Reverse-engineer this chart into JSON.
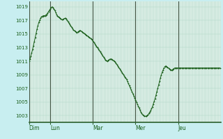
{
  "background_color": "#c8eef0",
  "plot_bg_color": "#dff0e8",
  "grid_color": "#b0d8c8",
  "line_color": "#1a5e1a",
  "marker_color": "#1a5e1a",
  "tick_label_color": "#1a5e1a",
  "axis_label_color": "#1a5e1a",
  "spine_color": "#2a5e2a",
  "day_line_color": "#445544",
  "ylim": [
    1002.0,
    1019.8
  ],
  "yticks": [
    1003,
    1005,
    1007,
    1009,
    1011,
    1013,
    1015,
    1017,
    1019
  ],
  "day_labels": [
    "Dim",
    "Lun",
    "Mar",
    "Mer",
    "Jeu"
  ],
  "day_positions": [
    0,
    24,
    72,
    120,
    168
  ],
  "total_hours": 216,
  "pressure_values": [
    1011.0,
    1011.3,
    1011.7,
    1012.2,
    1012.7,
    1013.3,
    1013.9,
    1014.5,
    1015.1,
    1015.7,
    1016.2,
    1016.7,
    1017.0,
    1017.3,
    1017.5,
    1017.6,
    1017.7,
    1017.7,
    1017.7,
    1017.8,
    1017.9,
    1018.1,
    1018.3,
    1018.5,
    1018.7,
    1018.9,
    1019.0,
    1018.9,
    1018.7,
    1018.5,
    1018.2,
    1017.9,
    1017.7,
    1017.5,
    1017.4,
    1017.3,
    1017.2,
    1017.1,
    1017.1,
    1017.2,
    1017.3,
    1017.3,
    1017.2,
    1017.0,
    1016.8,
    1016.6,
    1016.4,
    1016.2,
    1016.0,
    1015.8,
    1015.6,
    1015.5,
    1015.4,
    1015.3,
    1015.2,
    1015.3,
    1015.4,
    1015.5,
    1015.5,
    1015.4,
    1015.3,
    1015.2,
    1015.1,
    1015.0,
    1014.9,
    1014.8,
    1014.7,
    1014.6,
    1014.5,
    1014.4,
    1014.3,
    1014.2,
    1014.0,
    1013.8,
    1013.6,
    1013.4,
    1013.2,
    1013.0,
    1012.8,
    1012.6,
    1012.4,
    1012.2,
    1012.0,
    1011.8,
    1011.6,
    1011.4,
    1011.2,
    1011.1,
    1011.0,
    1011.1,
    1011.2,
    1011.3,
    1011.3,
    1011.3,
    1011.2,
    1011.1,
    1011.0,
    1010.9,
    1010.7,
    1010.5,
    1010.3,
    1010.1,
    1009.9,
    1009.7,
    1009.5,
    1009.3,
    1009.1,
    1008.9,
    1008.7,
    1008.5,
    1008.3,
    1008.0,
    1007.7,
    1007.4,
    1007.1,
    1006.8,
    1006.5,
    1006.2,
    1005.9,
    1005.6,
    1005.3,
    1005.0,
    1004.7,
    1004.4,
    1004.1,
    1003.8,
    1003.5,
    1003.3,
    1003.1,
    1003.0,
    1002.9,
    1002.9,
    1002.9,
    1003.0,
    1003.1,
    1003.3,
    1003.5,
    1003.7,
    1004.0,
    1004.3,
    1004.7,
    1005.1,
    1005.5,
    1006.0,
    1006.5,
    1007.0,
    1007.5,
    1008.0,
    1008.5,
    1009.0,
    1009.4,
    1009.7,
    1010.0,
    1010.2,
    1010.3,
    1010.2,
    1010.1,
    1010.0,
    1009.9,
    1009.8,
    1009.7,
    1009.7,
    1009.8,
    1009.9,
    1010.0,
    1010.0,
    1010.0,
    1010.0,
    1010.0,
    1010.0,
    1010.0,
    1010.0,
    1010.0,
    1010.0,
    1010.0,
    1010.0,
    1010.0,
    1010.0,
    1010.0,
    1010.0,
    1010.0,
    1010.0,
    1010.0,
    1010.0,
    1010.0,
    1010.0,
    1010.0,
    1010.0,
    1010.0,
    1010.0,
    1010.0,
    1010.0,
    1010.0,
    1010.0,
    1010.0,
    1010.0,
    1010.0,
    1010.0,
    1010.0,
    1010.0,
    1010.0,
    1010.0,
    1010.0,
    1010.0,
    1010.0,
    1010.0,
    1010.0,
    1010.0,
    1010.0,
    1010.0,
    1010.0,
    1010.0,
    1010.0,
    1010.0,
    1010.0,
    1010.0
  ]
}
